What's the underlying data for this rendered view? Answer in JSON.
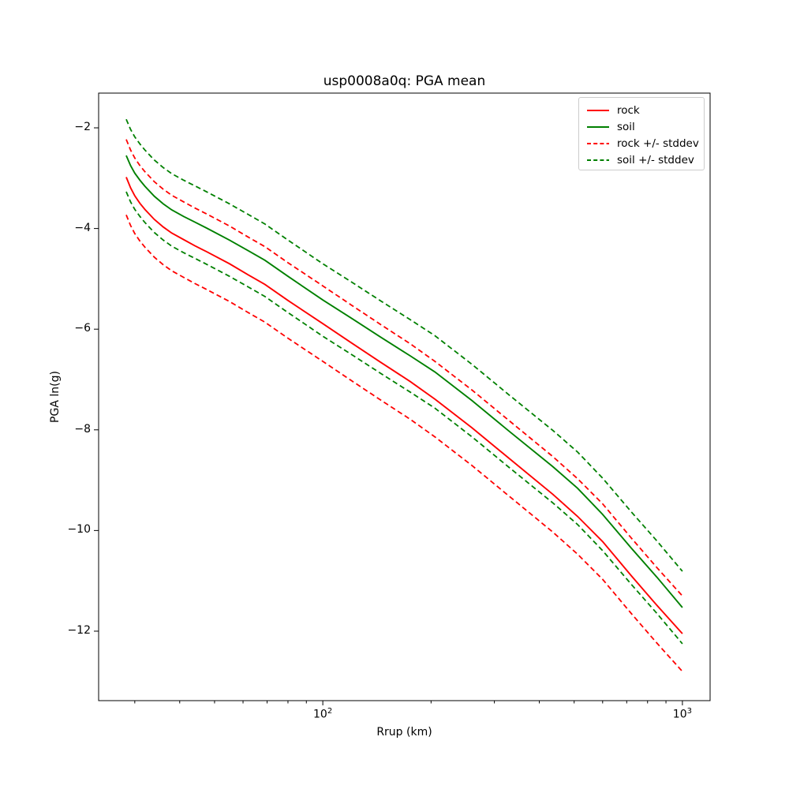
{
  "figure": {
    "background": "#ffffff"
  },
  "chart_data": {
    "type": "line",
    "title": "usp0008a0q: PGA mean",
    "xlabel": "Rrup (km)",
    "ylabel": "PGA ln(g)",
    "xscale": "log",
    "xlim": [
      23.8,
      1194
    ],
    "ylim": [
      -13.38,
      -1.31
    ],
    "grid": false,
    "legend_position": "upper right",
    "axes_color": "#000000",
    "x": [
      28.4,
      29.2,
      30,
      31,
      32,
      34,
      36,
      38,
      41,
      44,
      47.5,
      55,
      62,
      69,
      80,
      100,
      120,
      145,
      175,
      205,
      260,
      330,
      436,
      511,
      600,
      721,
      850,
      1000
    ],
    "series": [
      {
        "name": "rock",
        "color": "#ff0000",
        "linestyle": "solid",
        "values": [
          -2.98,
          -3.19,
          -3.35,
          -3.5,
          -3.62,
          -3.82,
          -3.97,
          -4.09,
          -4.22,
          -4.34,
          -4.46,
          -4.7,
          -4.92,
          -5.11,
          -5.43,
          -5.89,
          -6.27,
          -6.66,
          -7.04,
          -7.39,
          -7.96,
          -8.57,
          -9.28,
          -9.72,
          -10.22,
          -10.9,
          -11.49,
          -12.05
        ]
      },
      {
        "name": "soil",
        "color": "#008000",
        "linestyle": "solid",
        "values": [
          -2.55,
          -2.75,
          -2.9,
          -3.04,
          -3.16,
          -3.36,
          -3.51,
          -3.63,
          -3.76,
          -3.87,
          -3.99,
          -4.23,
          -4.44,
          -4.63,
          -4.95,
          -5.42,
          -5.78,
          -6.16,
          -6.53,
          -6.85,
          -7.42,
          -8.03,
          -8.73,
          -9.16,
          -9.68,
          -10.35,
          -10.93,
          -11.53
        ]
      },
      {
        "name": "rock +/- stddev",
        "color": "#ff0000",
        "linestyle": "dashed",
        "stddev": 0.75,
        "values_upper": [
          -2.23,
          -2.44,
          -2.6,
          -2.75,
          -2.87,
          -3.07,
          -3.22,
          -3.34,
          -3.47,
          -3.59,
          -3.71,
          -3.95,
          -4.17,
          -4.36,
          -4.68,
          -5.14,
          -5.52,
          -5.91,
          -6.29,
          -6.64,
          -7.21,
          -7.82,
          -8.53,
          -8.97,
          -9.47,
          -10.15,
          -10.74,
          -11.3
        ],
        "values_lower": [
          -3.73,
          -3.94,
          -4.1,
          -4.25,
          -4.37,
          -4.57,
          -4.72,
          -4.84,
          -4.97,
          -5.09,
          -5.21,
          -5.45,
          -5.67,
          -5.86,
          -6.18,
          -6.64,
          -7.02,
          -7.41,
          -7.79,
          -8.14,
          -8.71,
          -9.32,
          -10.03,
          -10.47,
          -10.97,
          -11.65,
          -12.24,
          -12.8
        ]
      },
      {
        "name": "soil +/- stddev",
        "color": "#008000",
        "linestyle": "dashed",
        "stddev": 0.72,
        "values_upper": [
          -1.83,
          -2.03,
          -2.18,
          -2.32,
          -2.44,
          -2.64,
          -2.79,
          -2.91,
          -3.04,
          -3.15,
          -3.27,
          -3.51,
          -3.72,
          -3.91,
          -4.23,
          -4.7,
          -5.06,
          -5.44,
          -5.81,
          -6.13,
          -6.7,
          -7.31,
          -8.01,
          -8.44,
          -8.96,
          -9.63,
          -10.21,
          -10.81
        ],
        "values_lower": [
          -3.27,
          -3.47,
          -3.62,
          -3.76,
          -3.88,
          -4.08,
          -4.23,
          -4.35,
          -4.48,
          -4.59,
          -4.71,
          -4.95,
          -5.16,
          -5.35,
          -5.67,
          -6.14,
          -6.5,
          -6.88,
          -7.25,
          -7.57,
          -8.14,
          -8.75,
          -9.45,
          -9.88,
          -10.4,
          -11.07,
          -11.65,
          -12.25
        ]
      }
    ],
    "x_ticks_major": [
      {
        "value": 100,
        "base": "10",
        "exp": "2"
      },
      {
        "value": 1000,
        "base": "10",
        "exp": "3"
      }
    ],
    "x_ticks_minor": [
      30,
      40,
      50,
      60,
      70,
      80,
      90,
      200,
      300,
      400,
      500,
      600,
      700,
      800,
      900
    ],
    "y_ticks": [
      {
        "value": -2,
        "label": "−2"
      },
      {
        "value": -4,
        "label": "−4"
      },
      {
        "value": -6,
        "label": "−6"
      },
      {
        "value": -8,
        "label": "−8"
      },
      {
        "value": -10,
        "label": "−10"
      },
      {
        "value": -12,
        "label": "−12"
      }
    ],
    "legend_entries": [
      "rock",
      "soil",
      "rock +/- stddev",
      "soil +/- stddev"
    ]
  }
}
